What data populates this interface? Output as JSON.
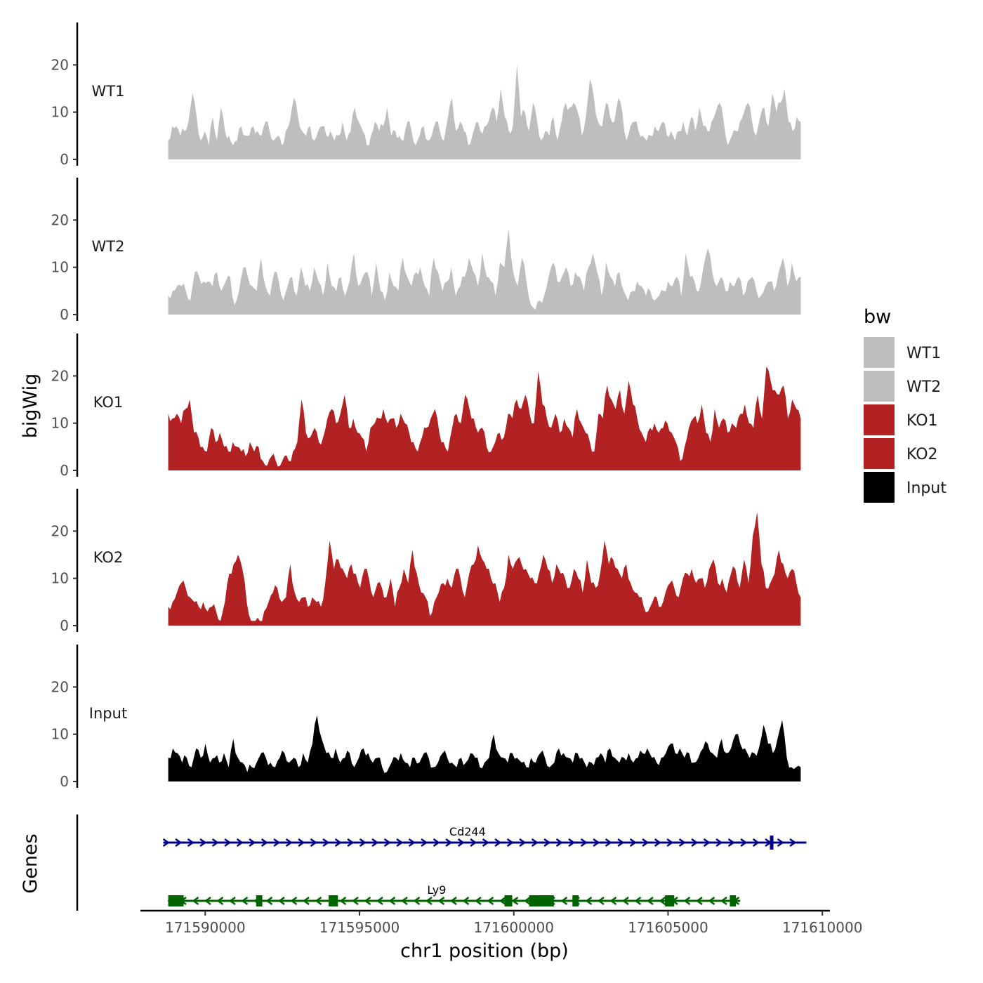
{
  "chart_data": {
    "type": "area",
    "ylabel": "bigWig",
    "xlabel": "chr1 position (bp)",
    "gene_track_label": "Genes",
    "ylim": [
      0,
      29
    ],
    "yticks": [
      0,
      10,
      20
    ],
    "xlim": [
      171587900,
      171610200
    ],
    "xticks": [
      171590000,
      171595000,
      171600000,
      171605000,
      171610000
    ],
    "xtick_labels": [
      "171590000",
      "171595000",
      "171600000",
      "171605000",
      "171610000"
    ],
    "region": [
      171588800,
      171609300
    ],
    "legend": {
      "title": "bw",
      "entries": [
        {
          "label": "WT1",
          "color": "#bebebe"
        },
        {
          "label": "WT2",
          "color": "#bebebe"
        },
        {
          "label": "KO1",
          "color": "#b22222"
        },
        {
          "label": "KO2",
          "color": "#b22222"
        },
        {
          "label": "Input",
          "color": "#000000"
        }
      ]
    },
    "tracks": [
      {
        "name": "WT1",
        "color": "#bebebe",
        "values": [
          4,
          7,
          7,
          5,
          6,
          8,
          14,
          9,
          4,
          6,
          3,
          9,
          4,
          11,
          6,
          5,
          3,
          4,
          7,
          5,
          5,
          7,
          6,
          5,
          8,
          6,
          4,
          5,
          3,
          6,
          8,
          13,
          9,
          6,
          5,
          7,
          4,
          6,
          7,
          5,
          6,
          4,
          5,
          8,
          4,
          6,
          11,
          8,
          6,
          3,
          5,
          8,
          6,
          7,
          11,
          5,
          6,
          5,
          4,
          8,
          6,
          3,
          5,
          7,
          4,
          5,
          8,
          6,
          4,
          9,
          13,
          6,
          8,
          6,
          3,
          5,
          8,
          6,
          7,
          8,
          11,
          8,
          15,
          9,
          6,
          7,
          20,
          9,
          10,
          6,
          12,
          8,
          4,
          6,
          5,
          9,
          4,
          8,
          12,
          11,
          12,
          10,
          5,
          9,
          17,
          13,
          8,
          7,
          12,
          9,
          8,
          13,
          10,
          4,
          7,
          8,
          6,
          5,
          4,
          5,
          7,
          6,
          8,
          5,
          6,
          4,
          6,
          8,
          5,
          9,
          6,
          11,
          7,
          6,
          8,
          10,
          12,
          8,
          3,
          5,
          6,
          8,
          10,
          12,
          8,
          5,
          9,
          11,
          7,
          14,
          10,
          12,
          15,
          8,
          6,
          9,
          8
        ],
        "noise": 1
      },
      {
        "name": "WT2",
        "color": "#bebebe",
        "values": [
          4,
          5,
          6,
          6,
          5,
          3,
          9,
          8,
          7,
          7,
          6,
          9,
          5,
          7,
          8,
          2,
          5,
          10,
          8,
          6,
          5,
          12,
          6,
          4,
          9,
          7,
          3,
          6,
          8,
          4,
          10,
          6,
          5,
          10,
          7,
          4,
          11,
          6,
          5,
          8,
          4,
          7,
          13,
          6,
          8,
          9,
          4,
          11,
          5,
          3,
          9,
          6,
          5,
          12,
          8,
          6,
          9,
          10,
          6,
          4,
          12,
          9,
          5,
          7,
          10,
          4,
          6,
          8,
          12,
          9,
          6,
          13,
          8,
          7,
          4,
          11,
          10,
          18,
          9,
          6,
          12,
          7,
          2,
          1,
          3,
          4,
          8,
          11,
          7,
          8,
          10,
          6,
          9,
          8,
          5,
          10,
          13,
          9,
          4,
          11,
          8,
          6,
          9,
          5,
          3,
          5,
          7,
          6,
          4,
          5,
          3,
          4,
          5,
          7,
          6,
          8,
          4,
          13,
          8,
          7,
          5,
          10,
          14,
          9,
          6,
          8,
          5,
          7,
          6,
          8,
          4,
          7,
          8,
          5,
          4,
          6,
          7,
          5,
          9,
          12,
          6,
          11,
          7,
          8
        ],
        "noise": 1
      },
      {
        "name": "KO1",
        "color": "#b22222",
        "values": [
          12,
          11,
          12,
          10,
          13,
          15,
          8,
          7,
          5,
          4,
          9,
          6,
          8,
          5,
          4,
          6,
          5,
          4,
          3,
          6,
          4,
          5,
          2,
          1,
          3,
          2,
          1,
          3,
          2,
          4,
          6,
          15,
          8,
          7,
          9,
          6,
          7,
          11,
          13,
          10,
          12,
          16,
          9,
          11,
          8,
          7,
          4,
          9,
          10,
          11,
          13,
          10,
          11,
          9,
          12,
          10,
          8,
          6,
          4,
          7,
          9,
          11,
          13,
          8,
          6,
          4,
          9,
          12,
          10,
          16,
          13,
          11,
          8,
          9,
          5,
          4,
          6,
          8,
          7,
          12,
          11,
          15,
          13,
          16,
          12,
          10,
          21,
          14,
          11,
          9,
          12,
          8,
          11,
          9,
          7,
          13,
          10,
          8,
          6,
          4,
          12,
          11,
          18,
          15,
          13,
          17,
          12,
          19,
          14,
          11,
          8,
          6,
          9,
          10,
          8,
          9,
          10,
          8,
          6,
          2,
          5,
          9,
          11,
          10,
          14,
          8,
          6,
          13,
          9,
          11,
          8,
          10,
          9,
          12,
          14,
          10,
          9,
          16,
          11,
          22,
          19,
          17,
          16,
          18,
          11,
          15,
          13,
          11
        ]
      },
      {
        "name": "KO2",
        "color": "#b22222",
        "values": [
          4,
          5,
          7,
          9,
          8,
          6,
          5,
          4,
          5,
          3,
          4,
          3,
          1,
          5,
          11,
          13,
          15,
          12,
          5,
          1,
          1,
          1,
          3,
          5,
          7,
          8,
          5,
          6,
          13,
          7,
          5,
          6,
          4,
          6,
          5,
          4,
          9,
          18,
          12,
          14,
          12,
          10,
          13,
          11,
          8,
          12,
          10,
          6,
          9,
          8,
          6,
          10,
          4,
          8,
          12,
          9,
          16,
          11,
          7,
          6,
          2,
          5,
          7,
          9,
          10,
          8,
          12,
          10,
          6,
          11,
          13,
          17,
          14,
          12,
          10,
          9,
          5,
          8,
          15,
          12,
          14,
          13,
          12,
          10,
          9,
          11,
          15,
          12,
          9,
          13,
          11,
          10,
          8,
          12,
          10,
          7,
          14,
          9,
          8,
          11,
          18,
          13,
          14,
          12,
          10,
          13,
          9,
          7,
          6,
          4,
          3,
          5,
          6,
          4,
          7,
          9,
          8,
          6,
          10,
          11,
          12,
          9,
          10,
          8,
          12,
          14,
          9,
          10,
          7,
          11,
          12,
          8,
          14,
          9,
          19,
          24,
          13,
          8,
          9,
          11,
          16,
          13,
          10,
          12,
          9,
          6
        ]
      },
      {
        "name": "Input",
        "color": "#000000",
        "values": [
          5,
          7,
          6,
          4,
          5,
          3,
          7,
          5,
          8,
          4,
          5,
          4,
          6,
          3,
          9,
          5,
          4,
          2,
          3,
          4,
          6,
          5,
          4,
          3,
          5,
          6,
          4,
          5,
          3,
          6,
          4,
          8,
          14,
          9,
          6,
          5,
          7,
          4,
          5,
          6,
          3,
          5,
          7,
          6,
          4,
          5,
          3,
          2,
          4,
          5,
          6,
          4,
          3,
          5,
          4,
          6,
          5,
          3,
          4,
          6,
          5,
          4,
          3,
          5,
          4,
          6,
          5,
          3,
          4,
          5,
          10,
          6,
          5,
          4,
          6,
          5,
          4,
          3,
          5,
          4,
          6,
          5,
          3,
          4,
          7,
          6,
          5,
          4,
          6,
          5,
          3,
          4,
          5,
          6,
          4,
          7,
          5,
          4,
          5,
          6,
          4,
          5,
          6,
          7,
          5,
          4,
          5,
          6,
          8,
          6,
          7,
          5,
          6,
          4,
          5,
          7,
          8,
          6,
          5,
          9,
          6,
          7,
          10,
          8,
          7,
          5,
          6,
          7,
          12,
          8,
          6,
          9,
          13,
          5,
          3,
          3,
          3
        ]
      }
    ],
    "genes": [
      {
        "name": "Cd244",
        "color": "#00008b",
        "strand": "+",
        "start": 171588800,
        "end": 171609300,
        "exons": [
          [
            171608300,
            171608350
          ]
        ],
        "label_position": 171598500
      },
      {
        "name": "Ly9",
        "color": "#006400",
        "strand": "-",
        "start": 171588800,
        "end": 171607200,
        "exons": [
          [
            171588800,
            171589300
          ],
          [
            171591650,
            171591850
          ],
          [
            171594000,
            171594300
          ],
          [
            171599700,
            171599950
          ],
          [
            171600500,
            171601300
          ],
          [
            171601900,
            171602100
          ],
          [
            171604900,
            171605200
          ],
          [
            171607000,
            171607200
          ]
        ],
        "label_position": 171597500
      }
    ]
  }
}
